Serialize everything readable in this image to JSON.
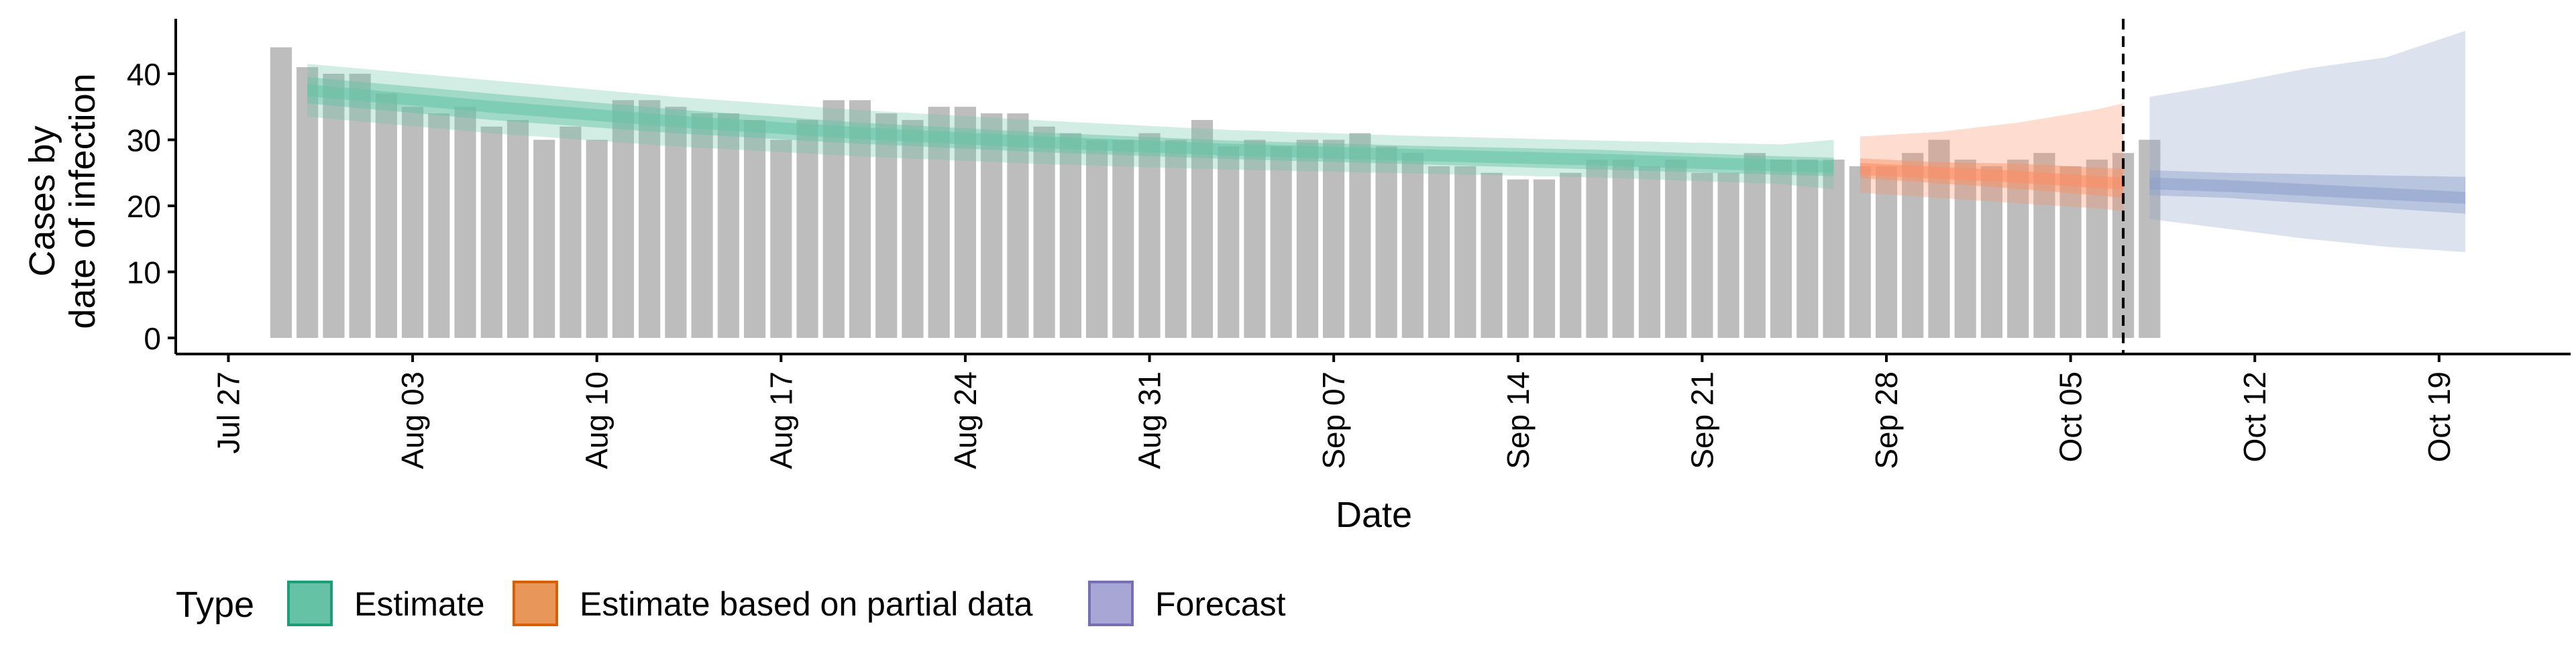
{
  "chart_data": {
    "type": "bar",
    "title": "",
    "xlabel": "Date",
    "ylabel_line1": "Cases by",
    "ylabel_line2": "date of infection",
    "ylim": [
      0,
      48
    ],
    "yticks": [
      0,
      10,
      20,
      30,
      40
    ],
    "x_range": [
      "2020-07-25",
      "2020-10-24"
    ],
    "xticks": [
      "2020-07-27",
      "2020-08-03",
      "2020-08-10",
      "2020-08-17",
      "2020-08-24",
      "2020-08-31",
      "2020-09-07",
      "2020-09-14",
      "2020-09-21",
      "2020-09-28",
      "2020-10-05",
      "2020-10-12",
      "2020-10-19"
    ],
    "xtick_labels": [
      "Jul 27",
      "Aug 03",
      "Aug 10",
      "Aug 17",
      "Aug 24",
      "Aug 31",
      "Sep 07",
      "Sep 14",
      "Sep 21",
      "Sep 28",
      "Oct 05",
      "Oct 12",
      "Oct 19"
    ],
    "bar_color": "#bdbdbd",
    "bars": {
      "start_date": "2020-07-29",
      "values": [
        44,
        41,
        40,
        40,
        37,
        35,
        34,
        35,
        32,
        33,
        30,
        32,
        30,
        36,
        36,
        35,
        34,
        34,
        33,
        30,
        33,
        36,
        36,
        34,
        33,
        35,
        35,
        34,
        34,
        32,
        31,
        30,
        30,
        31,
        30,
        33,
        29,
        30,
        29,
        30,
        30,
        31,
        29,
        28,
        26,
        26,
        25,
        24,
        24,
        25,
        27,
        27,
        26,
        27,
        25,
        25,
        28,
        27,
        27,
        27,
        26,
        26,
        28,
        30,
        27,
        26,
        27,
        28,
        26,
        27,
        28,
        30
      ]
    },
    "vline_date": "2020-10-07",
    "bands": [
      {
        "type": "Estimate",
        "color": "#1b9e77",
        "fill": "#66c2a5",
        "dates": [
          "2020-07-30",
          "2020-08-06",
          "2020-08-13",
          "2020-08-20",
          "2020-08-27",
          "2020-09-03",
          "2020-09-10",
          "2020-09-17",
          "2020-09-24",
          "2020-09-26"
        ],
        "median": [
          37.5,
          35.0,
          32.8,
          31.0,
          29.6,
          28.5,
          27.7,
          27.0,
          26.1,
          25.9
        ],
        "inner_low": [
          35.5,
          33.0,
          31.0,
          29.4,
          28.1,
          27.1,
          26.3,
          25.5,
          24.7,
          24.5
        ],
        "inner_high": [
          39.5,
          37.0,
          34.6,
          32.6,
          31.1,
          29.9,
          29.1,
          28.5,
          27.5,
          27.3
        ],
        "outer_low": [
          33.5,
          31.0,
          29.0,
          27.5,
          26.3,
          25.5,
          24.9,
          24.3,
          23.3,
          22.5
        ],
        "outer_high": [
          41.5,
          39.0,
          36.5,
          34.5,
          32.9,
          31.5,
          30.6,
          29.9,
          29.3,
          30.0
        ]
      },
      {
        "type": "Estimate based on partial data",
        "color": "#d95f02",
        "fill": "#fc8d62",
        "dates": [
          "2020-09-27",
          "2020-09-30",
          "2020-10-03",
          "2020-10-06",
          "2020-10-07"
        ],
        "median": [
          25.6,
          25.0,
          24.4,
          23.6,
          23.4
        ],
        "inner_low": [
          24.2,
          23.4,
          22.6,
          21.6,
          21.2
        ],
        "inner_high": [
          27.2,
          26.6,
          26.4,
          25.8,
          25.6
        ],
        "outer_low": [
          22.0,
          21.2,
          20.4,
          19.6,
          19.2
        ],
        "outer_high": [
          30.5,
          31.2,
          32.6,
          34.6,
          35.5
        ]
      },
      {
        "type": "Forecast",
        "color": "#7570b3",
        "fill": "#8da0cb",
        "dates": [
          "2020-10-08",
          "2020-10-11",
          "2020-10-14",
          "2020-10-17",
          "2020-10-20"
        ],
        "median": [
          23.4,
          23.0,
          22.4,
          21.8,
          21.2
        ],
        "inner_low": [
          21.6,
          21.2,
          20.4,
          19.6,
          18.8
        ],
        "inner_high": [
          25.4,
          25.0,
          24.8,
          24.6,
          24.4
        ],
        "outer_low": [
          18.0,
          16.5,
          15.0,
          13.8,
          13.0
        ],
        "outer_high": [
          36.5,
          38.5,
          40.8,
          42.5,
          46.5
        ]
      }
    ],
    "legend": {
      "title": "Type",
      "position": "bottom-left",
      "items": [
        {
          "label": "Estimate",
          "fill": "#66c2a5",
          "stroke": "#1b9e77"
        },
        {
          "label": "Estimate based on partial data",
          "fill": "#e9965a",
          "stroke": "#d95f02"
        },
        {
          "label": "Forecast",
          "fill": "#a7a6d4",
          "stroke": "#7570b3"
        }
      ]
    }
  }
}
